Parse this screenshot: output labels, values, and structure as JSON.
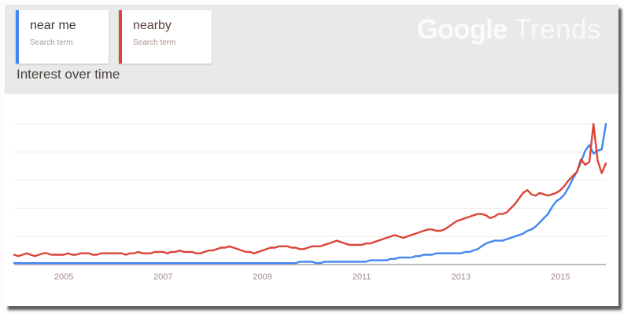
{
  "page": {
    "outer_bg": "#fdfdfd",
    "panel_bg": "#e9e9e9",
    "card_bg": "#ffffff"
  },
  "logo": {
    "part1": "Google",
    "part2": "Trends"
  },
  "section_title": "Interest over time",
  "legend": {
    "terms": [
      {
        "label": "near me",
        "sublabel": "Search term",
        "color": "#4285f4"
      },
      {
        "label": "nearby",
        "sublabel": "Search term",
        "color": "#db4437"
      }
    ]
  },
  "chart_data": {
    "type": "line",
    "title": "Interest over time",
    "xlabel": "",
    "ylabel": "",
    "ylim": [
      0,
      100
    ],
    "grid": true,
    "grid_values": [
      20,
      40,
      60,
      80,
      100
    ],
    "legend_position": "top-left-cards",
    "x_start": "2004-01",
    "x_end": "2015-12",
    "x_tick_years": [
      2005,
      2007,
      2009,
      2011,
      2013,
      2015
    ],
    "x_tick_labels": [
      "2005",
      "2007",
      "2009",
      "2011",
      "2013",
      "2015"
    ],
    "series": [
      {
        "name": "near me",
        "color": "#4285f4",
        "values": [
          1,
          1,
          1,
          1,
          1,
          1,
          1,
          1,
          1,
          1,
          1,
          1,
          1,
          1,
          1,
          1,
          1,
          1,
          1,
          1,
          1,
          1,
          1,
          1,
          1,
          1,
          1,
          1,
          1,
          1,
          1,
          1,
          1,
          1,
          1,
          1,
          1,
          1,
          1,
          1,
          1,
          1,
          1,
          1,
          1,
          1,
          1,
          1,
          1,
          1,
          1,
          1,
          1,
          1,
          1,
          1,
          1,
          1,
          1,
          1,
          1,
          1,
          1,
          1,
          1,
          1,
          1,
          1,
          1,
          2,
          2,
          2,
          2,
          1,
          1,
          2,
          2,
          2,
          2,
          2,
          2,
          2,
          2,
          2,
          2,
          2,
          3,
          3,
          3,
          3,
          3,
          4,
          4,
          5,
          5,
          5,
          5,
          6,
          6,
          7,
          7,
          7,
          8,
          8,
          8,
          8,
          8,
          8,
          8,
          9,
          9,
          10,
          11,
          13,
          15,
          16,
          17,
          17,
          17,
          18,
          19,
          20,
          21,
          22,
          24,
          25,
          27,
          30,
          33,
          36,
          41,
          45,
          47,
          50,
          55,
          61,
          66,
          73,
          81,
          85,
          79,
          81,
          82,
          100
        ]
      },
      {
        "name": "nearby",
        "color": "#db4437",
        "values": [
          7,
          6,
          7,
          8,
          7,
          6,
          7,
          8,
          8,
          7,
          7,
          7,
          7,
          8,
          7,
          7,
          8,
          8,
          8,
          7,
          7,
          8,
          8,
          8,
          8,
          8,
          8,
          7,
          8,
          8,
          9,
          8,
          8,
          8,
          9,
          9,
          9,
          8,
          9,
          9,
          10,
          9,
          9,
          9,
          8,
          8,
          9,
          10,
          10,
          11,
          12,
          12,
          13,
          12,
          11,
          10,
          9,
          9,
          8,
          9,
          10,
          11,
          12,
          12,
          13,
          13,
          13,
          12,
          12,
          11,
          11,
          12,
          13,
          13,
          13,
          14,
          15,
          16,
          17,
          16,
          15,
          14,
          14,
          14,
          14,
          15,
          15,
          16,
          17,
          18,
          19,
          20,
          21,
          20,
          19,
          20,
          21,
          22,
          23,
          24,
          25,
          25,
          24,
          24,
          25,
          27,
          29,
          31,
          32,
          33,
          34,
          35,
          36,
          36,
          35,
          33,
          34,
          36,
          36,
          37,
          40,
          43,
          47,
          51,
          53,
          50,
          49,
          51,
          50,
          49,
          50,
          51,
          53,
          56,
          60,
          63,
          66,
          75,
          71,
          73,
          100,
          74,
          65,
          72
        ]
      }
    ]
  }
}
